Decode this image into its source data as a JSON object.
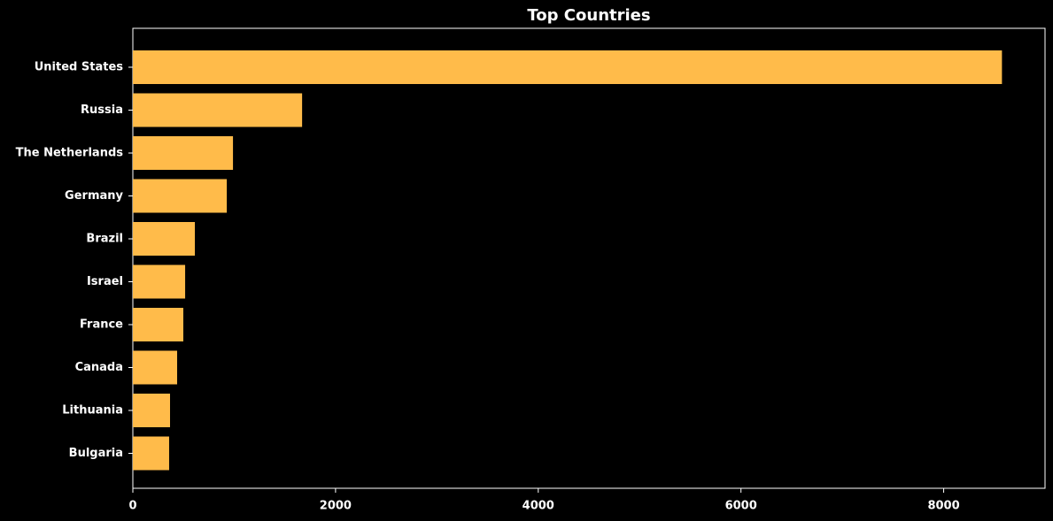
{
  "chart_data": {
    "type": "barh",
    "title": "Top Countries",
    "categories": [
      "United States",
      "Russia",
      "The Netherlands",
      "Germany",
      "Brazil",
      "Israel",
      "France",
      "Canada",
      "Lithuania",
      "Bulgaria"
    ],
    "values": [
      8575,
      1670,
      988,
      927,
      612,
      516,
      498,
      437,
      367,
      358
    ],
    "color": "#ffbb4a",
    "xlim": [
      0,
      9000
    ],
    "xticks": [
      0,
      2000,
      4000,
      6000,
      8000
    ],
    "grid": false
  }
}
